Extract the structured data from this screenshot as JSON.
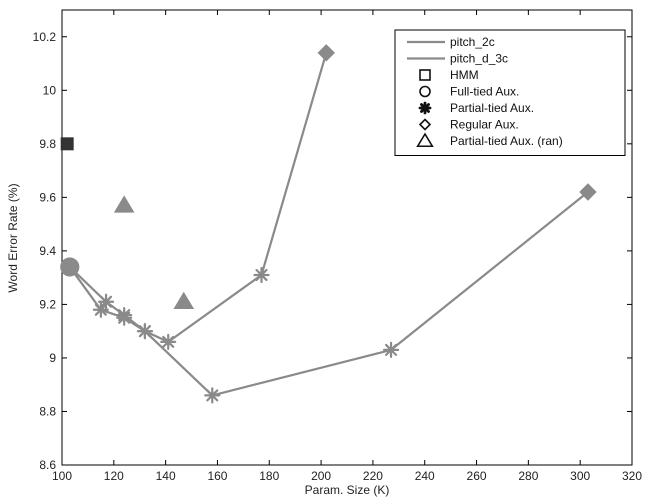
{
  "chart_data": {
    "type": "line",
    "title": "",
    "xlabel": "Param. Size (K)",
    "ylabel": "Word Error Rate (%)",
    "xlim": [
      100,
      320
    ],
    "ylim": [
      8.6,
      10.3
    ],
    "x_ticks": [
      "100",
      "120",
      "140",
      "160",
      "180",
      "200",
      "220",
      "240",
      "260",
      "280",
      "300",
      "320"
    ],
    "y_ticks": [
      "8.6",
      "8.8",
      "9",
      "9.2",
      "9.4",
      "9.6",
      "9.8",
      "10",
      "10.2"
    ],
    "legend_position": "top-right",
    "grid": false,
    "line_color": "#8a8a8a",
    "marker_color": "#8a8a8a",
    "hmm_color": "#333333",
    "series": [
      {
        "name": "pitch_2c",
        "points": [
          {
            "x": 103,
            "y": 9.34,
            "marker": "circle"
          },
          {
            "x": 117,
            "y": 9.21,
            "marker": "star"
          },
          {
            "x": 124,
            "y": 9.16,
            "marker": "star"
          },
          {
            "x": 132,
            "y": 9.1,
            "marker": "star"
          },
          {
            "x": 141,
            "y": 9.06,
            "marker": "star"
          },
          {
            "x": 177,
            "y": 9.31,
            "marker": "star"
          },
          {
            "x": 202,
            "y": 10.14,
            "marker": "diamond"
          }
        ]
      },
      {
        "name": "pitch_d_3c",
        "points": [
          {
            "x": 103,
            "y": 9.34,
            "marker": "circle"
          },
          {
            "x": 115,
            "y": 9.18,
            "marker": "star"
          },
          {
            "x": 124,
            "y": 9.15,
            "marker": "star"
          },
          {
            "x": 132,
            "y": 9.1,
            "marker": "star"
          },
          {
            "x": 158,
            "y": 8.86,
            "marker": "star"
          },
          {
            "x": 227,
            "y": 9.03,
            "marker": "star"
          },
          {
            "x": 303,
            "y": 9.62,
            "marker": "diamond"
          }
        ]
      }
    ],
    "standalone_points": [
      {
        "label": "HMM",
        "x": 102,
        "y": 9.8,
        "marker": "square"
      },
      {
        "label": "Partial-tied Aux. (ran)",
        "x": 124,
        "y": 9.57,
        "marker": "triangle"
      },
      {
        "label": "Partial-tied Aux. (ran)",
        "x": 147,
        "y": 9.21,
        "marker": "triangle"
      }
    ],
    "legend": [
      {
        "label": "pitch_2c",
        "symbol": "line"
      },
      {
        "label": "pitch_d_3c",
        "symbol": "line"
      },
      {
        "label": "HMM",
        "symbol": "square"
      },
      {
        "label": "Full-tied Aux.",
        "symbol": "circle"
      },
      {
        "label": "Partial-tied Aux.",
        "symbol": "star"
      },
      {
        "label": "Regular Aux.",
        "symbol": "diamond"
      },
      {
        "label": "Partial-tied Aux. (ran)",
        "symbol": "triangle"
      }
    ]
  }
}
